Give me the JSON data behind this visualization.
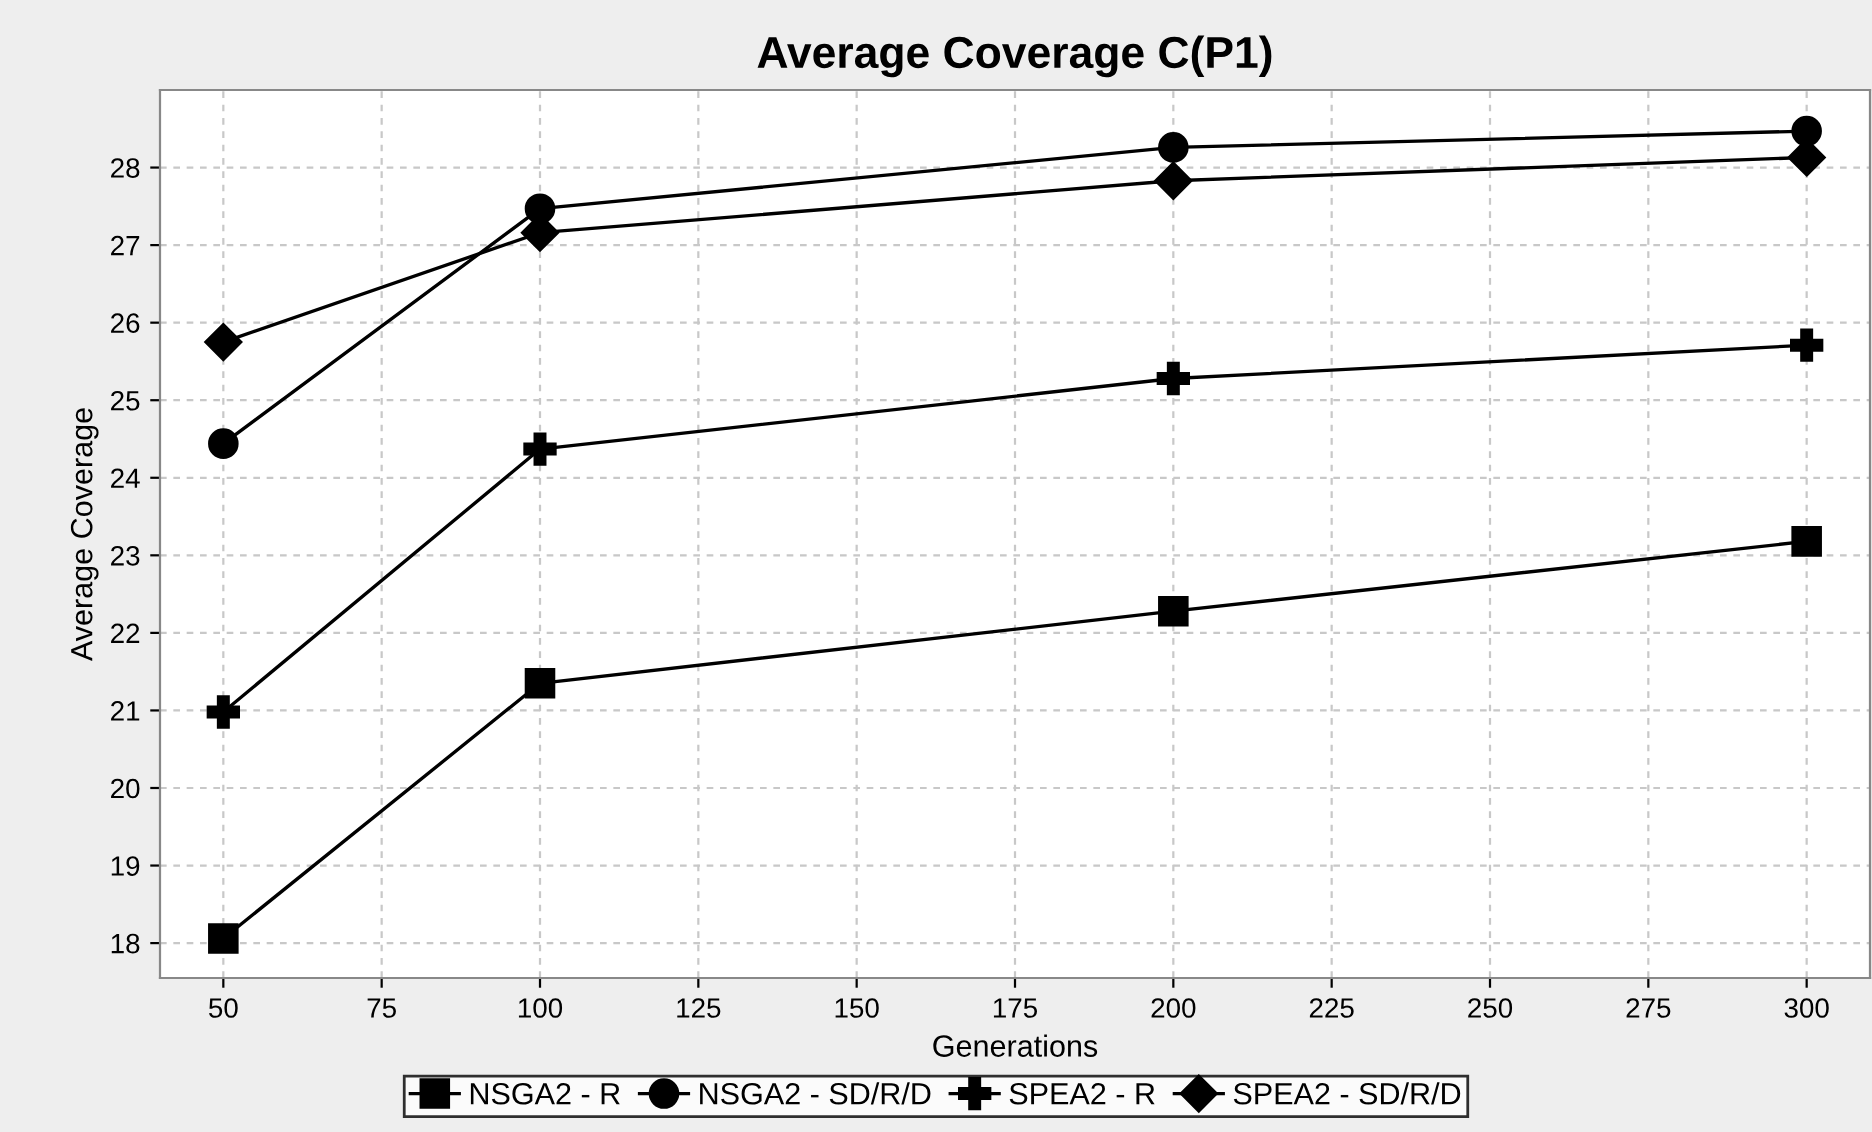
{
  "chart_data": {
    "type": "line",
    "title": "Average Coverage C(P1)",
    "xlabel": "Generations",
    "ylabel": "Average Coverage",
    "x": [
      50,
      100,
      200,
      300
    ],
    "series": [
      {
        "name": "NSGA2 - R",
        "color": "#000000",
        "marker": "square",
        "values": [
          18.06,
          21.35,
          22.28,
          23.18
        ]
      },
      {
        "name": "NSGA2 - SD/R/D",
        "color": "#000000",
        "marker": "circle",
        "values": [
          24.44,
          27.47,
          28.26,
          28.47
        ]
      },
      {
        "name": "SPEA2 - R",
        "color": "#000000",
        "marker": "cross",
        "values": [
          20.98,
          24.37,
          25.28,
          25.71
        ]
      },
      {
        "name": "SPEA2 - SD/R/D",
        "color": "#000000",
        "marker": "diamond",
        "values": [
          25.75,
          27.16,
          27.83,
          28.13
        ]
      }
    ],
    "xlim": [
      40,
      310
    ],
    "xticks": [
      50,
      75,
      100,
      125,
      150,
      175,
      200,
      225,
      250,
      275,
      300
    ],
    "ylim": [
      17.55,
      29.0
    ],
    "yticks": [
      18,
      19,
      20,
      21,
      22,
      23,
      24,
      25,
      26,
      27,
      28
    ],
    "grid": true,
    "legend": "bottom",
    "line_style": "solid"
  }
}
